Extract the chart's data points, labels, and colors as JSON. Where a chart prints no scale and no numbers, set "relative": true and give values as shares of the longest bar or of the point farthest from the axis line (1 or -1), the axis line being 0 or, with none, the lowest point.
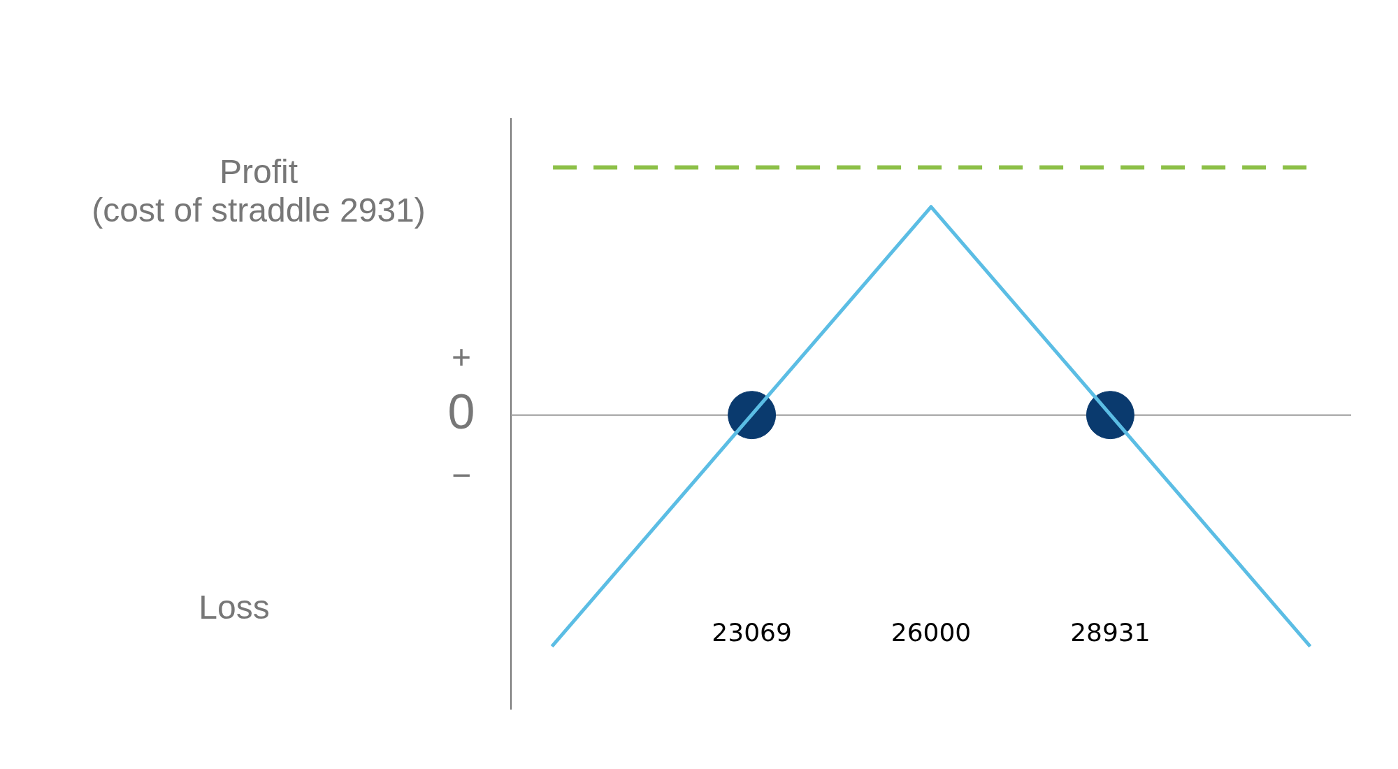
{
  "chart_data": {
    "type": "line",
    "relative": true,
    "xlim": [
      19130,
      32870
    ],
    "xticks": [
      23069,
      26000,
      28931
    ],
    "series": [
      {
        "color": "#5bbde4",
        "x": [
          19800,
          26000,
          32200
        ],
        "values": [
          -1,
          0.9,
          -1
        ],
        "marker": "none",
        "line_style": "solid"
      },
      {
        "type": "scatter",
        "color": "#0a3a6e",
        "x": [
          23069,
          28931
        ],
        "values": [
          0,
          0
        ],
        "marker": "circle"
      }
    ],
    "ref_lines": [
      {
        "axis": "y",
        "value": 0,
        "color": "#9a9a9a",
        "line_style": "solid"
      },
      {
        "axis": "y",
        "value": 1.07,
        "color": "#8dc048",
        "line_style": "dashed"
      }
    ],
    "annotations": [
      "Profit\n(cost of straddle 2931)",
      "+",
      "0",
      "−",
      "Loss"
    ],
    "grid": false,
    "legend": false
  }
}
